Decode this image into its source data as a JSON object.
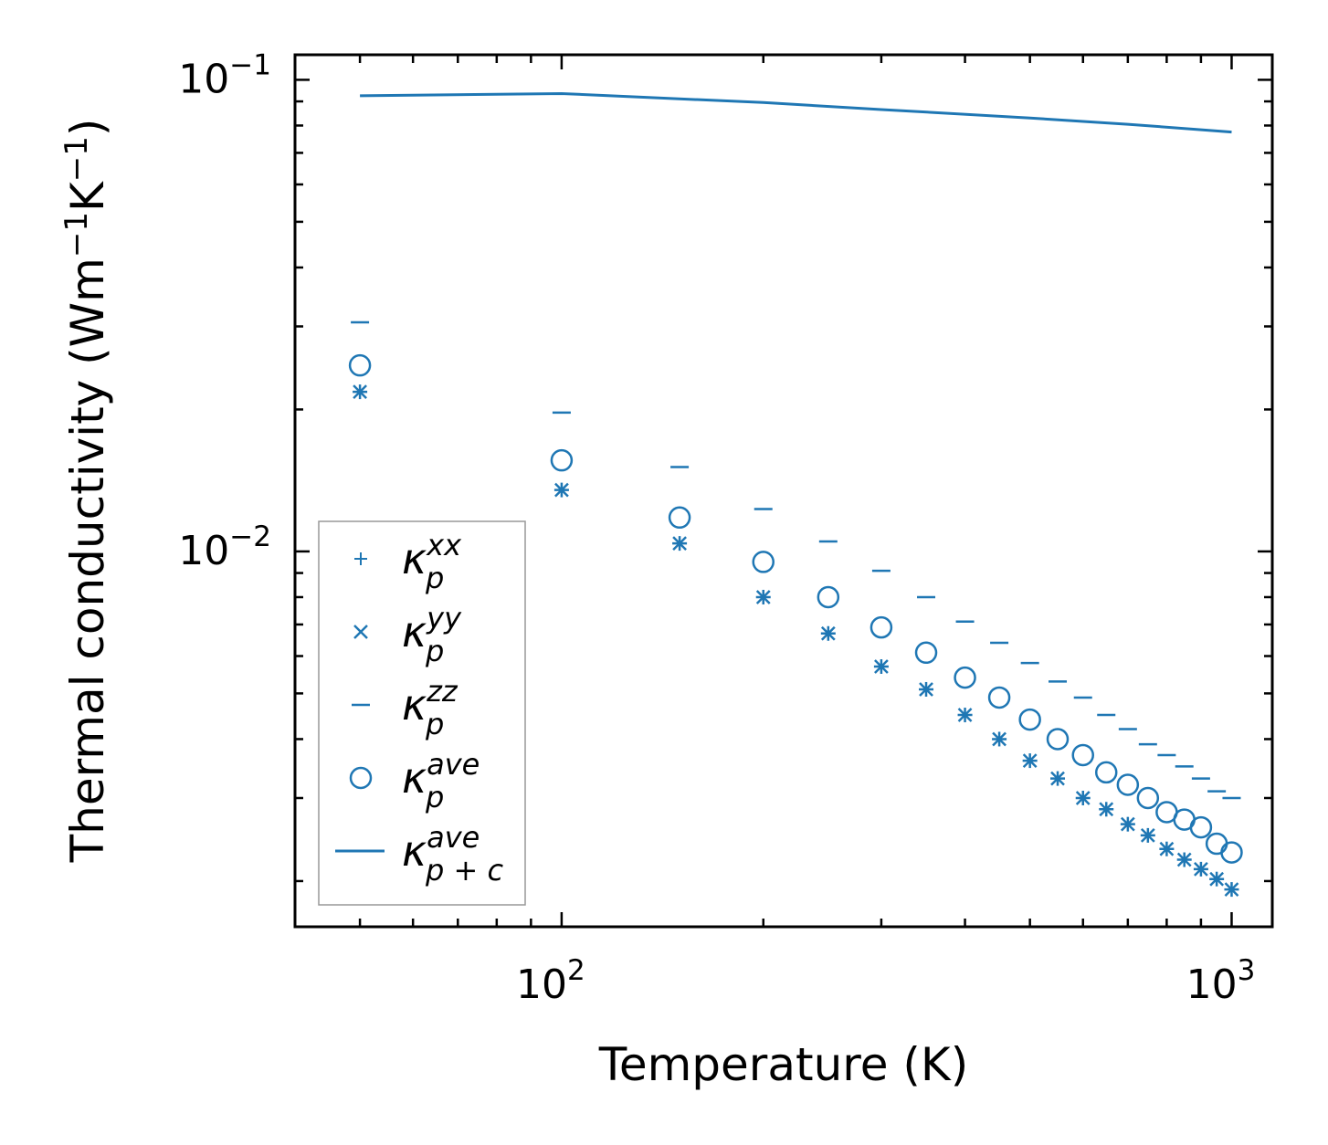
{
  "chart_data": {
    "type": "scatter",
    "title": "",
    "xlabel": "Temperature (K)",
    "ylabel_base": "Thermal conductivity (Wm",
    "ylabel": "Thermal conductivity (Wm⁻¹K⁻¹)",
    "xscale": "log",
    "yscale": "log",
    "xlim": [
      40,
      1150
    ],
    "ylim": [
      0.0016,
      0.113
    ],
    "x_ticks": [
      {
        "value": 100,
        "base": "10",
        "exp": "2"
      },
      {
        "value": 1000,
        "base": "10",
        "exp": "3"
      }
    ],
    "y_ticks": [
      {
        "value": 0.01,
        "base": "10",
        "exp": "−2"
      },
      {
        "value": 0.1,
        "base": "10",
        "exp": "−1"
      }
    ],
    "color": "#1f77b4",
    "x": [
      50,
      100,
      150,
      200,
      250,
      300,
      350,
      400,
      450,
      500,
      550,
      600,
      650,
      700,
      750,
      800,
      850,
      900,
      950,
      1000
    ],
    "series": [
      {
        "name": "kappa_p^xx",
        "marker": "plus",
        "values": [
          0.0218,
          0.0135,
          0.0104,
          0.008,
          0.0067,
          0.0057,
          0.0051,
          0.0045,
          0.004,
          0.0036,
          0.0033,
          0.003,
          0.00284,
          0.00264,
          0.0025,
          0.00234,
          0.00222,
          0.00212,
          0.00202,
          0.00192
        ]
      },
      {
        "name": "kappa_p^yy",
        "marker": "x",
        "values": [
          0.0218,
          0.0135,
          0.0104,
          0.008,
          0.0067,
          0.0057,
          0.0051,
          0.0045,
          0.004,
          0.0036,
          0.0033,
          0.003,
          0.00284,
          0.00264,
          0.0025,
          0.00234,
          0.00222,
          0.00212,
          0.00202,
          0.00192
        ]
      },
      {
        "name": "kappa_p^zz",
        "marker": "hline",
        "values": [
          0.0306,
          0.0197,
          0.0151,
          0.0123,
          0.0105,
          0.0091,
          0.008,
          0.0071,
          0.0064,
          0.0058,
          0.0053,
          0.0049,
          0.0045,
          0.0042,
          0.0039,
          0.0037,
          0.0035,
          0.0033,
          0.0031,
          0.003
        ]
      },
      {
        "name": "kappa_p^ave",
        "marker": "circle",
        "values": [
          0.0248,
          0.0156,
          0.0118,
          0.0095,
          0.008,
          0.0069,
          0.0061,
          0.0054,
          0.0049,
          0.0044,
          0.004,
          0.0037,
          0.0034,
          0.0032,
          0.003,
          0.0028,
          0.0027,
          0.0026,
          0.0024,
          0.0023
        ]
      },
      {
        "name": "kappa_p+c^ave",
        "marker": "line",
        "x": [
          50,
          100,
          200,
          300,
          500,
          700,
          1000
        ],
        "values": [
          0.0925,
          0.0935,
          0.0895,
          0.0865,
          0.083,
          0.0805,
          0.0775
        ]
      }
    ],
    "legend": {
      "position": "lower-left",
      "entries": [
        {
          "main": "κ",
          "sub": "p",
          "sup": "xx"
        },
        {
          "main": "κ",
          "sub": "p",
          "sup": "yy"
        },
        {
          "main": "κ",
          "sub": "p",
          "sup": "zz"
        },
        {
          "main": "κ",
          "sub": "p",
          "sup": "ave"
        },
        {
          "main": "κ",
          "sub": "p + c",
          "sup": "ave"
        }
      ]
    }
  }
}
